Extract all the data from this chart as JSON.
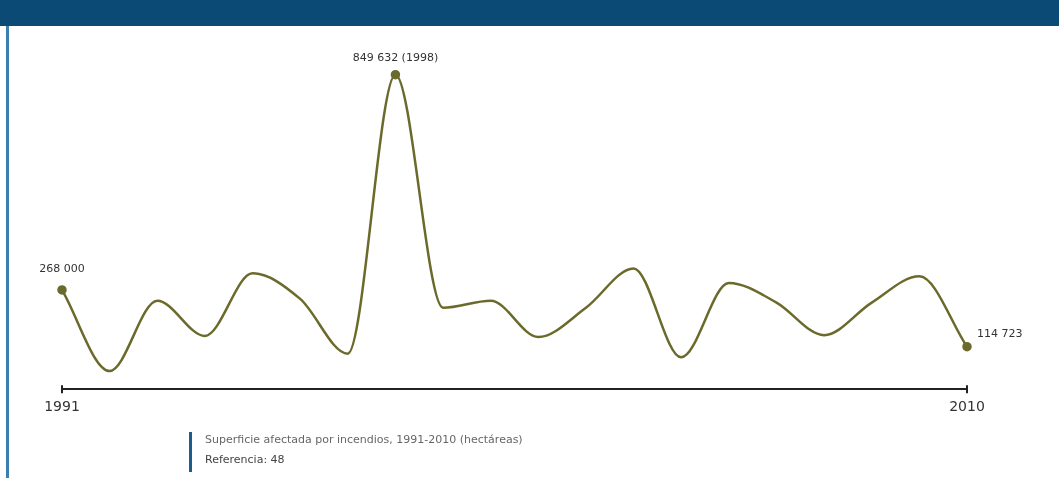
{
  "chart_data": {
    "type": "line",
    "annotations": [
      "Superficie afectada por incendios, 1991-2010 (hectáreas)",
      "Referencia: 48"
    ],
    "categories": [
      "1991",
      null,
      null,
      null,
      null,
      null,
      null,
      null,
      null,
      null,
      null,
      null,
      null,
      null,
      null,
      null,
      null,
      null,
      null,
      "2010"
    ],
    "series": [
      {
        "color": "#6b6a2c",
        "values": [
          268000,
          49000,
          239000,
          144000,
          313000,
          244000,
          96000,
          849632,
          220000,
          239000,
          141000,
          220000,
          326000,
          86000,
          287000,
          234000,
          146000,
          234000,
          305000,
          114723
        ],
        "value_labels": [
          "268 000",
          null,
          null,
          null,
          null,
          null,
          null,
          "849 632 (1998)",
          null,
          null,
          null,
          null,
          null,
          null,
          null,
          null,
          null,
          null,
          null,
          "114 723"
        ]
      }
    ],
    "grid": false,
    "legend": false,
    "line_style": "solid"
  }
}
